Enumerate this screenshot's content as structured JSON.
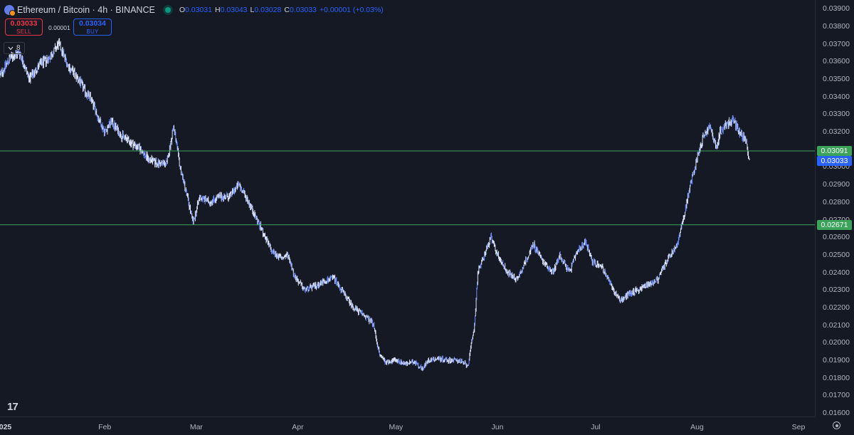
{
  "header": {
    "symbol_title": "Ethereum / Bitcoin · 4h · BINANCE",
    "open_label": "O",
    "open": "0.03031",
    "high_label": "H",
    "high": "0.03043",
    "low_label": "L",
    "low": "0.03028",
    "close_label": "C",
    "close": "0.03033",
    "change": "+0.00001 (+0.03%)"
  },
  "trade": {
    "sell_price": "0.03033",
    "sell_label": "SELL",
    "spread": "0.00001",
    "buy_price": "0.03034",
    "buy_label": "BUY"
  },
  "indicator_toggle": {
    "count": "8"
  },
  "price_tags": {
    "level_high": "0.03091",
    "last": "0.03033",
    "level_low": "0.02671"
  },
  "colors": {
    "background": "#151924",
    "candle": "#dde5ff",
    "candle_shade": "#6d8bff",
    "level_line": "#3ca45a",
    "level_tag": "#3ca45a",
    "last_tag": "#2962ff",
    "sell": "#f23645",
    "buy": "#2962ff"
  },
  "chart_data": {
    "type": "candlestick",
    "timeframe": "4h",
    "y_axis_ticks": [
      "0.03900",
      "0.03800",
      "0.03700",
      "0.03600",
      "0.03500",
      "0.03400",
      "0.03300",
      "0.03200",
      "0.03100",
      "0.03000",
      "0.02900",
      "0.02800",
      "0.02700",
      "0.02600",
      "0.02500",
      "0.02400",
      "0.02300",
      "0.02200",
      "0.02100",
      "0.02000",
      "0.01900",
      "0.01800",
      "0.01700",
      "0.01600"
    ],
    "ylim": [
      0.0158,
      0.0395
    ],
    "x_axis_labels": [
      "2025",
      "Feb",
      "Mar",
      "Apr",
      "May",
      "Jun",
      "Jul",
      "Aug",
      "Sep"
    ],
    "xlim": [
      "2024-12-31",
      "2025-09-06"
    ],
    "horizontal_levels": [
      0.03091,
      0.02671
    ],
    "last_price": 0.03033,
    "series": [
      {
        "values": [
          [
            "2024-12-31",
            0.0352
          ],
          [
            "2025-01-03",
            0.0362
          ],
          [
            "2025-01-06",
            0.0365
          ],
          [
            "2025-01-09",
            0.035
          ],
          [
            "2025-01-12",
            0.0358
          ],
          [
            "2025-01-15",
            0.0362
          ],
          [
            "2025-01-18",
            0.037
          ],
          [
            "2025-01-21",
            0.0357
          ],
          [
            "2025-01-24",
            0.035
          ],
          [
            "2025-01-26",
            0.0343
          ],
          [
            "2025-01-28",
            0.0338
          ],
          [
            "2025-01-30",
            0.0328
          ],
          [
            "2025-02-01",
            0.032
          ],
          [
            "2025-02-03",
            0.0326
          ],
          [
            "2025-02-06",
            0.0318
          ],
          [
            "2025-02-09",
            0.0314
          ],
          [
            "2025-02-12",
            0.031
          ],
          [
            "2025-02-14",
            0.0305
          ],
          [
            "2025-02-17",
            0.0302
          ],
          [
            "2025-02-20",
            0.0302
          ],
          [
            "2025-02-22",
            0.0323
          ],
          [
            "2025-02-24",
            0.03
          ],
          [
            "2025-02-26",
            0.0285
          ],
          [
            "2025-02-28",
            0.0268
          ],
          [
            "2025-03-02",
            0.0283
          ],
          [
            "2025-03-05",
            0.028
          ],
          [
            "2025-03-08",
            0.0283
          ],
          [
            "2025-03-11",
            0.0283
          ],
          [
            "2025-03-14",
            0.029
          ],
          [
            "2025-03-17",
            0.028
          ],
          [
            "2025-03-19",
            0.0272
          ],
          [
            "2025-03-21",
            0.0264
          ],
          [
            "2025-03-24",
            0.0252
          ],
          [
            "2025-03-27",
            0.0248
          ],
          [
            "2025-03-29",
            0.025
          ],
          [
            "2025-03-31",
            0.0238
          ],
          [
            "2025-04-03",
            0.023
          ],
          [
            "2025-04-06",
            0.0232
          ],
          [
            "2025-04-09",
            0.0235
          ],
          [
            "2025-04-12",
            0.0237
          ],
          [
            "2025-04-15",
            0.0228
          ],
          [
            "2025-04-18",
            0.022
          ],
          [
            "2025-04-21",
            0.0216
          ],
          [
            "2025-04-24",
            0.0211
          ],
          [
            "2025-04-26",
            0.0193
          ],
          [
            "2025-04-28",
            0.0189
          ],
          [
            "2025-05-01",
            0.019
          ],
          [
            "2025-05-04",
            0.0188
          ],
          [
            "2025-05-07",
            0.0189
          ],
          [
            "2025-05-09",
            0.0185
          ],
          [
            "2025-05-11",
            0.019
          ],
          [
            "2025-05-14",
            0.0191
          ],
          [
            "2025-05-17",
            0.019
          ],
          [
            "2025-05-20",
            0.019
          ],
          [
            "2025-05-23",
            0.0187
          ],
          [
            "2025-05-25",
            0.021
          ],
          [
            "2025-05-26",
            0.024
          ],
          [
            "2025-05-28",
            0.025
          ],
          [
            "2025-05-30",
            0.026
          ],
          [
            "2025-06-01",
            0.025
          ],
          [
            "2025-06-04",
            0.024
          ],
          [
            "2025-06-07",
            0.0236
          ],
          [
            "2025-06-10",
            0.0248
          ],
          [
            "2025-06-12",
            0.0256
          ],
          [
            "2025-06-15",
            0.0246
          ],
          [
            "2025-06-18",
            0.024
          ],
          [
            "2025-06-20",
            0.025
          ],
          [
            "2025-06-23",
            0.024
          ],
          [
            "2025-06-25",
            0.025
          ],
          [
            "2025-06-28",
            0.0258
          ],
          [
            "2025-06-30",
            0.0246
          ],
          [
            "2025-07-03",
            0.0243
          ],
          [
            "2025-07-05",
            0.0235
          ],
          [
            "2025-07-07",
            0.0228
          ],
          [
            "2025-07-09",
            0.0224
          ],
          [
            "2025-07-11",
            0.0228
          ],
          [
            "2025-07-14",
            0.023
          ],
          [
            "2025-07-17",
            0.0233
          ],
          [
            "2025-07-20",
            0.0236
          ],
          [
            "2025-07-22",
            0.0244
          ],
          [
            "2025-07-24",
            0.025
          ],
          [
            "2025-07-26",
            0.0256
          ],
          [
            "2025-07-28",
            0.0272
          ],
          [
            "2025-07-30",
            0.029
          ],
          [
            "2025-08-01",
            0.0305
          ],
          [
            "2025-08-03",
            0.0318
          ],
          [
            "2025-08-05",
            0.0323
          ],
          [
            "2025-08-07",
            0.031
          ],
          [
            "2025-08-08",
            0.032
          ],
          [
            "2025-08-10",
            0.0324
          ],
          [
            "2025-08-12",
            0.0327
          ],
          [
            "2025-08-14",
            0.032
          ],
          [
            "2025-08-16",
            0.0315
          ],
          [
            "2025-08-17",
            0.0303
          ]
        ]
      }
    ]
  }
}
